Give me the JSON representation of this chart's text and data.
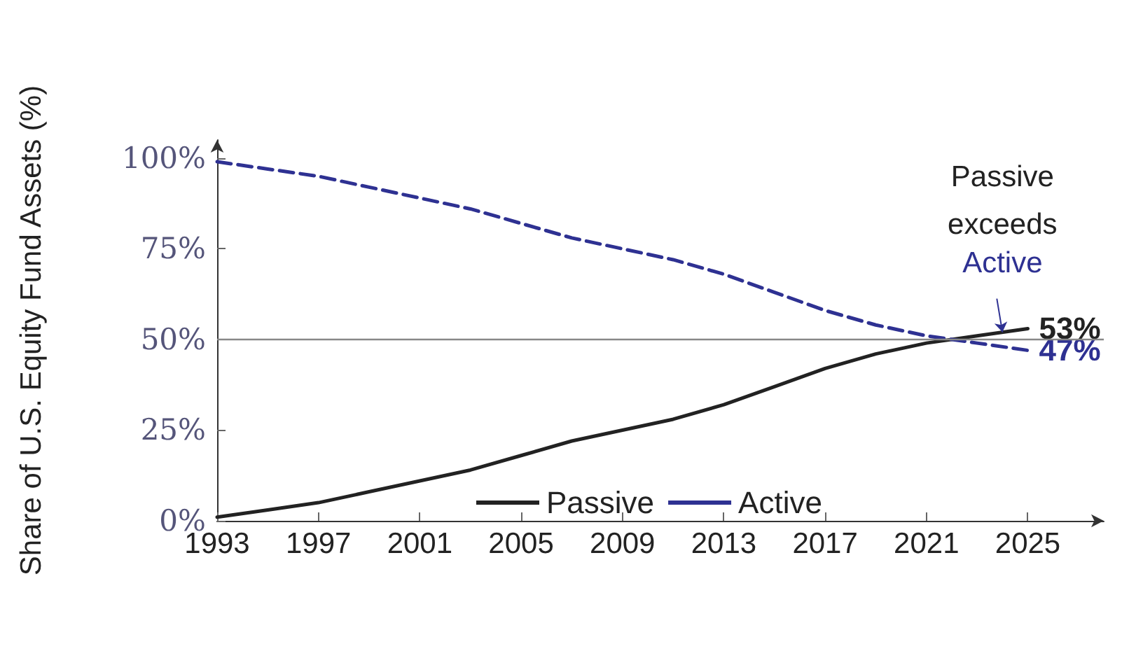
{
  "chart_data": {
    "type": "line",
    "ylabel": "Share of U.S. Equity Fund Assets (%)",
    "x": [
      1993,
      1995,
      1997,
      1999,
      2001,
      2003,
      2005,
      2007,
      2009,
      2011,
      2013,
      2015,
      2017,
      2019,
      2021,
      2023,
      2025
    ],
    "series": [
      {
        "name": "Passive",
        "color": "#222222",
        "line_style": "solid",
        "values": [
          1,
          3,
          5,
          8,
          11,
          14,
          18,
          22,
          25,
          28,
          32,
          37,
          42,
          46,
          49,
          51,
          53
        ],
        "value_labels": [
          null,
          null,
          null,
          null,
          null,
          null,
          null,
          null,
          null,
          null,
          null,
          null,
          null,
          null,
          null,
          null,
          "53%"
        ]
      },
      {
        "name": "Active",
        "color": "#2e3192",
        "line_style": "dashed",
        "values": [
          99,
          97,
          95,
          92,
          89,
          86,
          82,
          78,
          75,
          72,
          68,
          63,
          58,
          54,
          51,
          49,
          47
        ],
        "value_labels": [
          null,
          null,
          null,
          null,
          null,
          null,
          null,
          null,
          null,
          null,
          null,
          null,
          null,
          null,
          null,
          null,
          "47%"
        ]
      }
    ],
    "xlim": [
      1993,
      2028
    ],
    "xticks": [
      1993,
      1997,
      2001,
      2005,
      2009,
      2013,
      2017,
      2021,
      2025
    ],
    "ylim": [
      0,
      105
    ],
    "yticks": [
      {
        "value": 0,
        "label": "0%"
      },
      {
        "value": 25,
        "label": "25%"
      },
      {
        "value": 50,
        "label": "50%"
      },
      {
        "value": 75,
        "label": "75%"
      },
      {
        "value": 100,
        "label": "100%"
      }
    ],
    "ref_lines": [
      {
        "axis": "y",
        "value": 50,
        "color": "#888888"
      }
    ],
    "annotations": [
      {
        "text": "Passive exceeds Active",
        "x": 2024,
        "y": 52
      }
    ],
    "grid": false,
    "legend": "bottom",
    "marker": "none"
  }
}
